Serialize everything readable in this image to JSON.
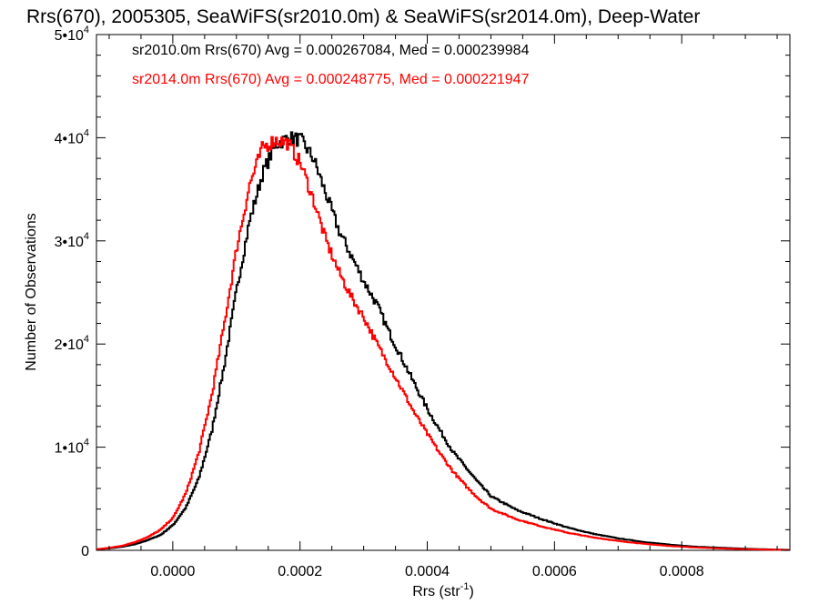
{
  "chart_data": {
    "type": "line",
    "title": "Rrs(670), 2005305, SeaWiFS(sr2010.0m) & SeaWiFS(sr2014.0m), Deep-Water",
    "xlabel": "Rrs (str",
    "xlabel_sup": "-1",
    "xlabel_close": ")",
    "ylabel": "Number of Observations",
    "xlim": [
      -0.00012,
      0.00097
    ],
    "ylim": [
      0,
      50000
    ],
    "grid": false,
    "step": true,
    "x_ticks": [
      {
        "value": 0.0,
        "label": "0.0000"
      },
      {
        "value": 0.0002,
        "label": "0.0002"
      },
      {
        "value": 0.0004,
        "label": "0.0004"
      },
      {
        "value": 0.0006,
        "label": "0.0006"
      },
      {
        "value": 0.0008,
        "label": "0.0008"
      }
    ],
    "y_ticks": [
      {
        "value": 0,
        "label": "0",
        "exp": ""
      },
      {
        "value": 10000,
        "label": "1•10",
        "exp": "4"
      },
      {
        "value": 20000,
        "label": "2•10",
        "exp": "4"
      },
      {
        "value": 30000,
        "label": "3•10",
        "exp": "4"
      },
      {
        "value": 40000,
        "label": "4•10",
        "exp": "4"
      },
      {
        "value": 50000,
        "label": "5•10",
        "exp": "4"
      }
    ],
    "annotations": [
      {
        "text": "sr2010.0m Rrs(670) Avg = 0.000267084, Med = 0.000239984",
        "color": "#000000"
      },
      {
        "text": "sr2014.0m Rrs(670) Avg = 0.000248775, Med = 0.000221947",
        "color": "#ff0000"
      }
    ],
    "series": [
      {
        "color": "#000000",
        "x": [
          -0.00012,
          -0.0001,
          -8e-05,
          -6e-05,
          -4e-05,
          -2e-05,
          0.0,
          2e-05,
          4e-05,
          6e-05,
          8e-05,
          0.0001,
          0.00012,
          0.00014,
          0.00016,
          0.00018,
          0.0002,
          0.00022,
          0.00024,
          0.00026,
          0.00028,
          0.0003,
          0.00032,
          0.00034,
          0.00036,
          0.00038,
          0.0004,
          0.00042,
          0.00044,
          0.00046,
          0.00048,
          0.0005,
          0.00054,
          0.00058,
          0.00062,
          0.00066,
          0.0007,
          0.00074,
          0.00078,
          0.00082,
          0.00086,
          0.0009,
          0.00094,
          0.00097
        ],
        "y": [
          100,
          200,
          350,
          600,
          1000,
          1500,
          2500,
          4200,
          7000,
          11500,
          18000,
          25500,
          32000,
          36500,
          39300,
          40000,
          39800,
          38000,
          34500,
          31000,
          28500,
          26000,
          23800,
          21000,
          18500,
          16000,
          13600,
          11500,
          9500,
          8000,
          6500,
          5200,
          3900,
          3000,
          2200,
          1600,
          1150,
          800,
          550,
          350,
          250,
          150,
          80,
          40
        ]
      },
      {
        "color": "#ff0000",
        "x": [
          -0.00012,
          -0.0001,
          -8e-05,
          -6e-05,
          -4e-05,
          -2e-05,
          0.0,
          2e-05,
          4e-05,
          6e-05,
          8e-05,
          0.0001,
          0.00012,
          0.00014,
          0.00016,
          0.00018,
          0.0002,
          0.00022,
          0.00024,
          0.00026,
          0.00028,
          0.0003,
          0.00032,
          0.00034,
          0.00036,
          0.00038,
          0.0004,
          0.00042,
          0.00044,
          0.00046,
          0.00048,
          0.0005,
          0.00054,
          0.00058,
          0.00062,
          0.00066,
          0.0007,
          0.00074,
          0.00078,
          0.00082,
          0.00086,
          0.0009,
          0.00094,
          0.00097
        ],
        "y": [
          100,
          250,
          450,
          800,
          1300,
          2000,
          3200,
          5600,
          9500,
          15000,
          22000,
          29500,
          35500,
          39000,
          39800,
          39500,
          37500,
          34000,
          30000,
          27000,
          24500,
          22500,
          20000,
          17800,
          15500,
          13200,
          11200,
          9300,
          7600,
          6200,
          5000,
          4000,
          3000,
          2300,
          1700,
          1250,
          900,
          630,
          420,
          280,
          180,
          110,
          60,
          30
        ]
      }
    ]
  }
}
